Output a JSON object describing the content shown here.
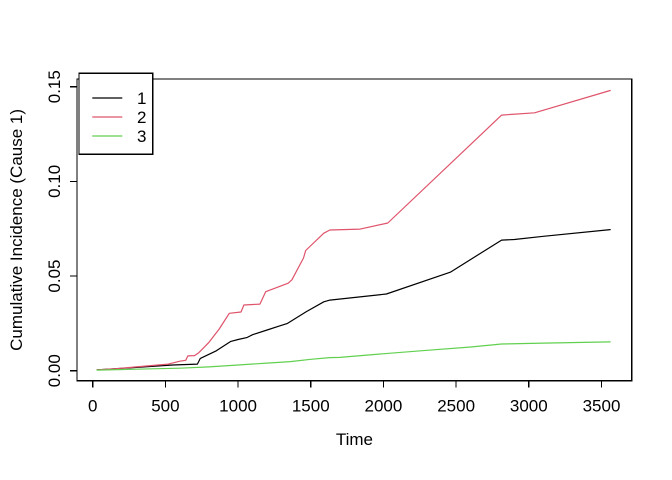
{
  "figure": {
    "background": "#ffffff",
    "border_color": "#000000"
  },
  "chart_data": {
    "type": "line",
    "title": "",
    "xlabel": "Time",
    "ylabel": "Cumulative Incidence (Cause 1)",
    "xlim": [
      0,
      3500
    ],
    "ylim": [
      0,
      0.15
    ],
    "x_ticks": [
      0,
      500,
      1000,
      1500,
      2000,
      2500,
      3000,
      3500
    ],
    "y_tick_labels": [
      "0.00",
      "0.05",
      "0.10",
      "0.15"
    ],
    "y_tick_values": [
      0,
      0.05,
      0.1,
      0.15
    ],
    "grid": false,
    "legend_position": "top-left",
    "series": [
      {
        "name": "1",
        "color": "#000000",
        "points": [
          [
            30,
            0.0005
          ],
          [
            250,
            0.0015
          ],
          [
            550,
            0.003
          ],
          [
            720,
            0.0035
          ],
          [
            740,
            0.0065
          ],
          [
            850,
            0.0105
          ],
          [
            950,
            0.0155
          ],
          [
            1000,
            0.0165
          ],
          [
            1060,
            0.0175
          ],
          [
            1100,
            0.019
          ],
          [
            1200,
            0.0215
          ],
          [
            1280,
            0.0235
          ],
          [
            1340,
            0.025
          ],
          [
            1470,
            0.0312
          ],
          [
            1590,
            0.0364
          ],
          [
            1632,
            0.0373
          ],
          [
            2020,
            0.0405
          ],
          [
            2460,
            0.052
          ],
          [
            2813,
            0.069
          ],
          [
            2900,
            0.0693
          ],
          [
            3100,
            0.071
          ],
          [
            3560,
            0.0745
          ]
        ]
      },
      {
        "name": "2",
        "color": "#DF536B",
        "points": [
          [
            30,
            0.0005
          ],
          [
            150,
            0.001
          ],
          [
            300,
            0.002
          ],
          [
            450,
            0.003
          ],
          [
            520,
            0.0035
          ],
          [
            600,
            0.005
          ],
          [
            640,
            0.0055
          ],
          [
            655,
            0.0078
          ],
          [
            700,
            0.008
          ],
          [
            730,
            0.0095
          ],
          [
            800,
            0.015
          ],
          [
            870,
            0.022
          ],
          [
            940,
            0.0303
          ],
          [
            1020,
            0.031
          ],
          [
            1040,
            0.0347
          ],
          [
            1150,
            0.0352
          ],
          [
            1190,
            0.0417
          ],
          [
            1345,
            0.0462
          ],
          [
            1370,
            0.048
          ],
          [
            1450,
            0.0595
          ],
          [
            1465,
            0.0635
          ],
          [
            1590,
            0.0726
          ],
          [
            1632,
            0.0743
          ],
          [
            1840,
            0.0748
          ],
          [
            2030,
            0.078
          ],
          [
            2813,
            0.135
          ],
          [
            3040,
            0.1362
          ],
          [
            3560,
            0.148
          ]
        ]
      },
      {
        "name": "3",
        "color": "#61D04F",
        "points": [
          [
            30,
            0.0003
          ],
          [
            300,
            0.0008
          ],
          [
            600,
            0.0013
          ],
          [
            800,
            0.002
          ],
          [
            1000,
            0.003
          ],
          [
            1200,
            0.004
          ],
          [
            1360,
            0.0048
          ],
          [
            1500,
            0.006
          ],
          [
            1630,
            0.0069
          ],
          [
            1700,
            0.007
          ],
          [
            1980,
            0.0088
          ],
          [
            2300,
            0.0108
          ],
          [
            2600,
            0.0125
          ],
          [
            2813,
            0.0141
          ],
          [
            3100,
            0.0146
          ],
          [
            3560,
            0.0152
          ]
        ]
      }
    ]
  }
}
